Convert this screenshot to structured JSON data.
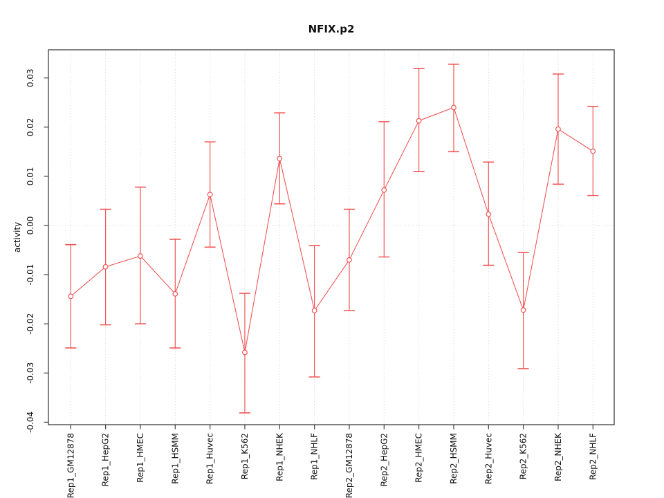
{
  "window": {
    "background": "#ffffff"
  },
  "chart_data": {
    "type": "line",
    "title": "NFIX.p2",
    "xlabel": "",
    "ylabel": "activity",
    "categories": [
      "Rep1_GM12878",
      "Rep1_HepG2",
      "Rep1_HMEC",
      "Rep1_HSMM",
      "Rep1_Huvec",
      "Rep1_K562",
      "Rep1_NHEK",
      "Rep1_NHLF",
      "Rep2_GM12878",
      "Rep2_HepG2",
      "Rep2_HMEC",
      "Rep2_HSMM",
      "Rep2_Huvec",
      "Rep2_K562",
      "Rep2_NHEK",
      "Rep2_NHLF"
    ],
    "series": [
      {
        "name": "activity",
        "values": [
          -0.0144,
          -0.0084,
          -0.0062,
          -0.0139,
          0.0063,
          -0.0258,
          0.0136,
          -0.0173,
          -0.007,
          0.0072,
          0.0213,
          0.024,
          0.0023,
          -0.0172,
          0.0196,
          0.0151
        ],
        "ci_high": [
          -0.0039,
          0.0033,
          0.0078,
          -0.0028,
          0.017,
          -0.0138,
          0.0229,
          -0.0041,
          0.0033,
          0.0211,
          0.0319,
          0.0328,
          0.0129,
          -0.0055,
          0.0308,
          0.0242
        ],
        "ci_low": [
          -0.0249,
          -0.0202,
          -0.02,
          -0.0249,
          -0.0044,
          -0.0381,
          0.0044,
          -0.0308,
          -0.0173,
          -0.0064,
          0.011,
          0.015,
          -0.0081,
          -0.0291,
          0.0084,
          0.0061
        ]
      }
    ],
    "yticks": [
      0.03,
      0.02,
      0.01,
      0.0,
      -0.01,
      -0.02,
      -0.03,
      -0.04
    ],
    "ytick_labels": [
      "0.03",
      "0.02",
      "0.01",
      "0.00",
      "-0.01",
      "-0.02",
      "-0.03",
      "-0.04"
    ],
    "ylim": [
      -0.0405,
      0.0357
    ],
    "grid": {
      "vertical": "dotted gridline at every category",
      "horizontal": "dotted gridline at y = 0 only"
    },
    "legend_position": "none",
    "marker": "open-circle",
    "error_bars": true
  },
  "style_colors": {
    "series": "#f05555",
    "grid": "#dedede",
    "axis": "#3f3f3f",
    "text": "#111111",
    "title": "#000000"
  }
}
